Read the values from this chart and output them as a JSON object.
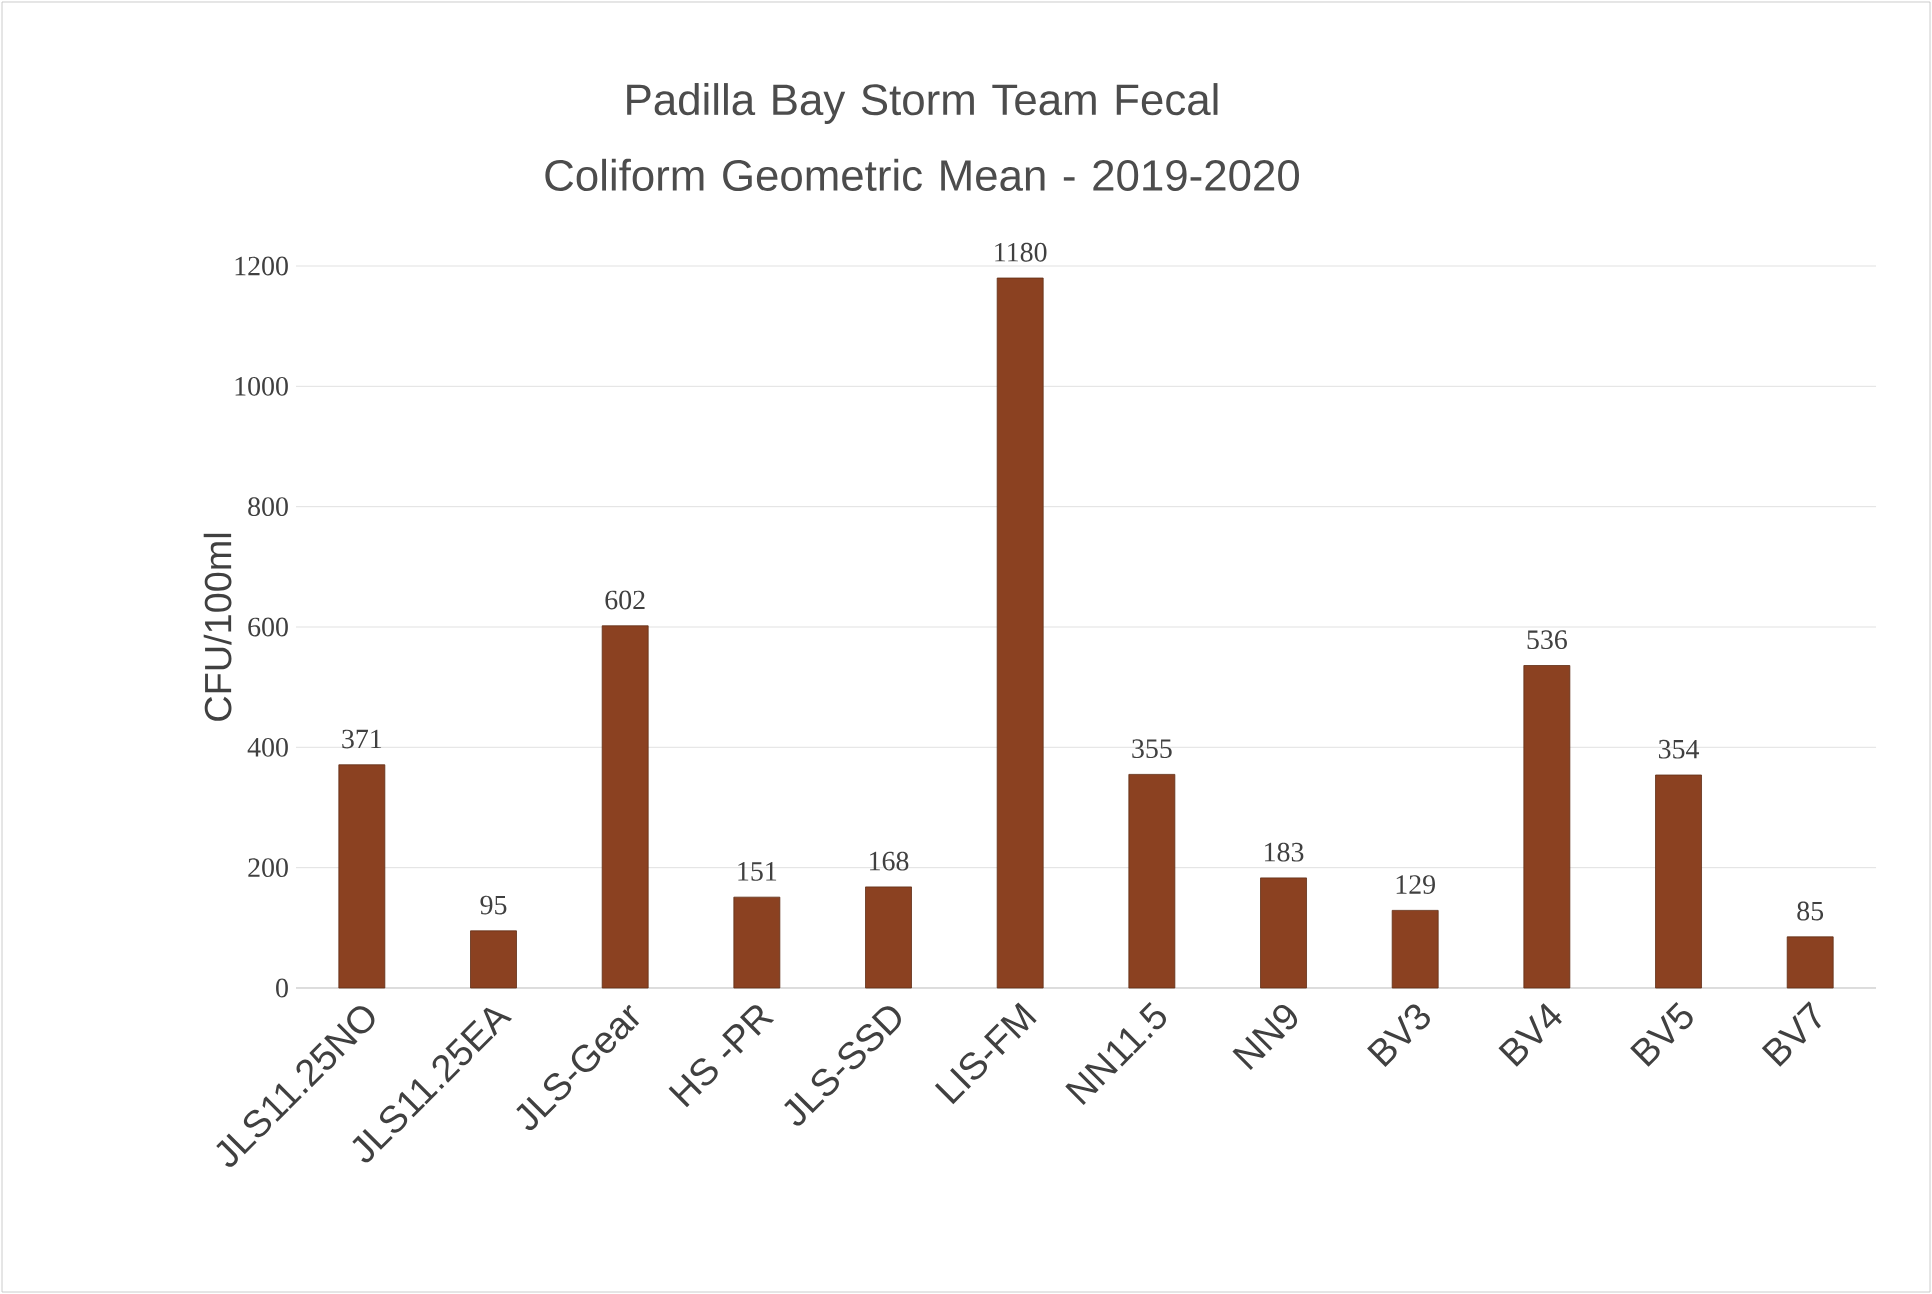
{
  "chart_data": {
    "type": "bar",
    "title": "Padilla Bay Storm Team Fecal Coliform Geometric Mean - 2019-2020",
    "ylabel": "CFU/100ml",
    "categories": [
      "JLS11.25NO",
      "JLS11.25EA",
      "JLS-Gear",
      "HS -PR",
      "JLS-SSD",
      "LIS-FM",
      "NN11.5",
      "NN9",
      "BV3",
      "BV4",
      "BV5",
      "BV7"
    ],
    "values": [
      371,
      95,
      602,
      151,
      168,
      1180,
      355,
      183,
      129,
      536,
      354,
      85
    ],
    "color": "#8b4121",
    "ylim": [
      0,
      1200
    ],
    "yticks": [
      0,
      200,
      400,
      600,
      800,
      1000,
      1200
    ],
    "grid": "y",
    "data_labels": true
  }
}
